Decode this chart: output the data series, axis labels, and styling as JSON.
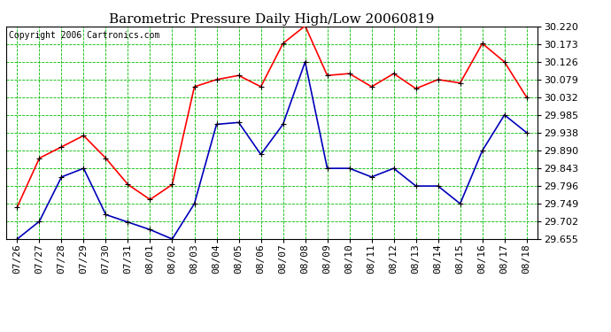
{
  "title": "Barometric Pressure Daily High/Low 20060819",
  "copyright": "Copyright 2006 Cartronics.com",
  "x_labels": [
    "07/26",
    "07/27",
    "07/28",
    "07/29",
    "07/30",
    "07/31",
    "08/01",
    "08/02",
    "08/03",
    "08/04",
    "08/05",
    "08/06",
    "08/07",
    "08/08",
    "08/09",
    "08/10",
    "08/11",
    "08/12",
    "08/13",
    "08/14",
    "08/15",
    "08/16",
    "08/17",
    "08/18"
  ],
  "high_values": [
    29.74,
    29.87,
    29.9,
    29.93,
    29.87,
    29.8,
    29.76,
    29.8,
    30.06,
    30.079,
    30.09,
    30.06,
    30.175,
    30.222,
    30.09,
    30.095,
    30.06,
    30.095,
    30.055,
    30.079,
    30.07,
    30.175,
    30.126,
    30.032
  ],
  "low_values": [
    29.655,
    29.702,
    29.82,
    29.843,
    29.72,
    29.7,
    29.68,
    29.655,
    29.749,
    29.96,
    29.965,
    29.88,
    29.96,
    30.126,
    29.843,
    29.843,
    29.82,
    29.843,
    29.796,
    29.796,
    29.749,
    29.89,
    29.985,
    29.938
  ],
  "high_color": "#ff0000",
  "low_color": "#0000bb",
  "marker_color": "#000000",
  "background_color": "#ffffff",
  "grid_color": "#00bb00",
  "title_fontsize": 11,
  "copyright_fontsize": 7,
  "tick_fontsize": 8,
  "ylim": [
    29.655,
    30.22
  ],
  "yticks": [
    29.655,
    29.702,
    29.749,
    29.796,
    29.843,
    29.89,
    29.938,
    29.985,
    30.032,
    30.079,
    30.126,
    30.173,
    30.22
  ]
}
